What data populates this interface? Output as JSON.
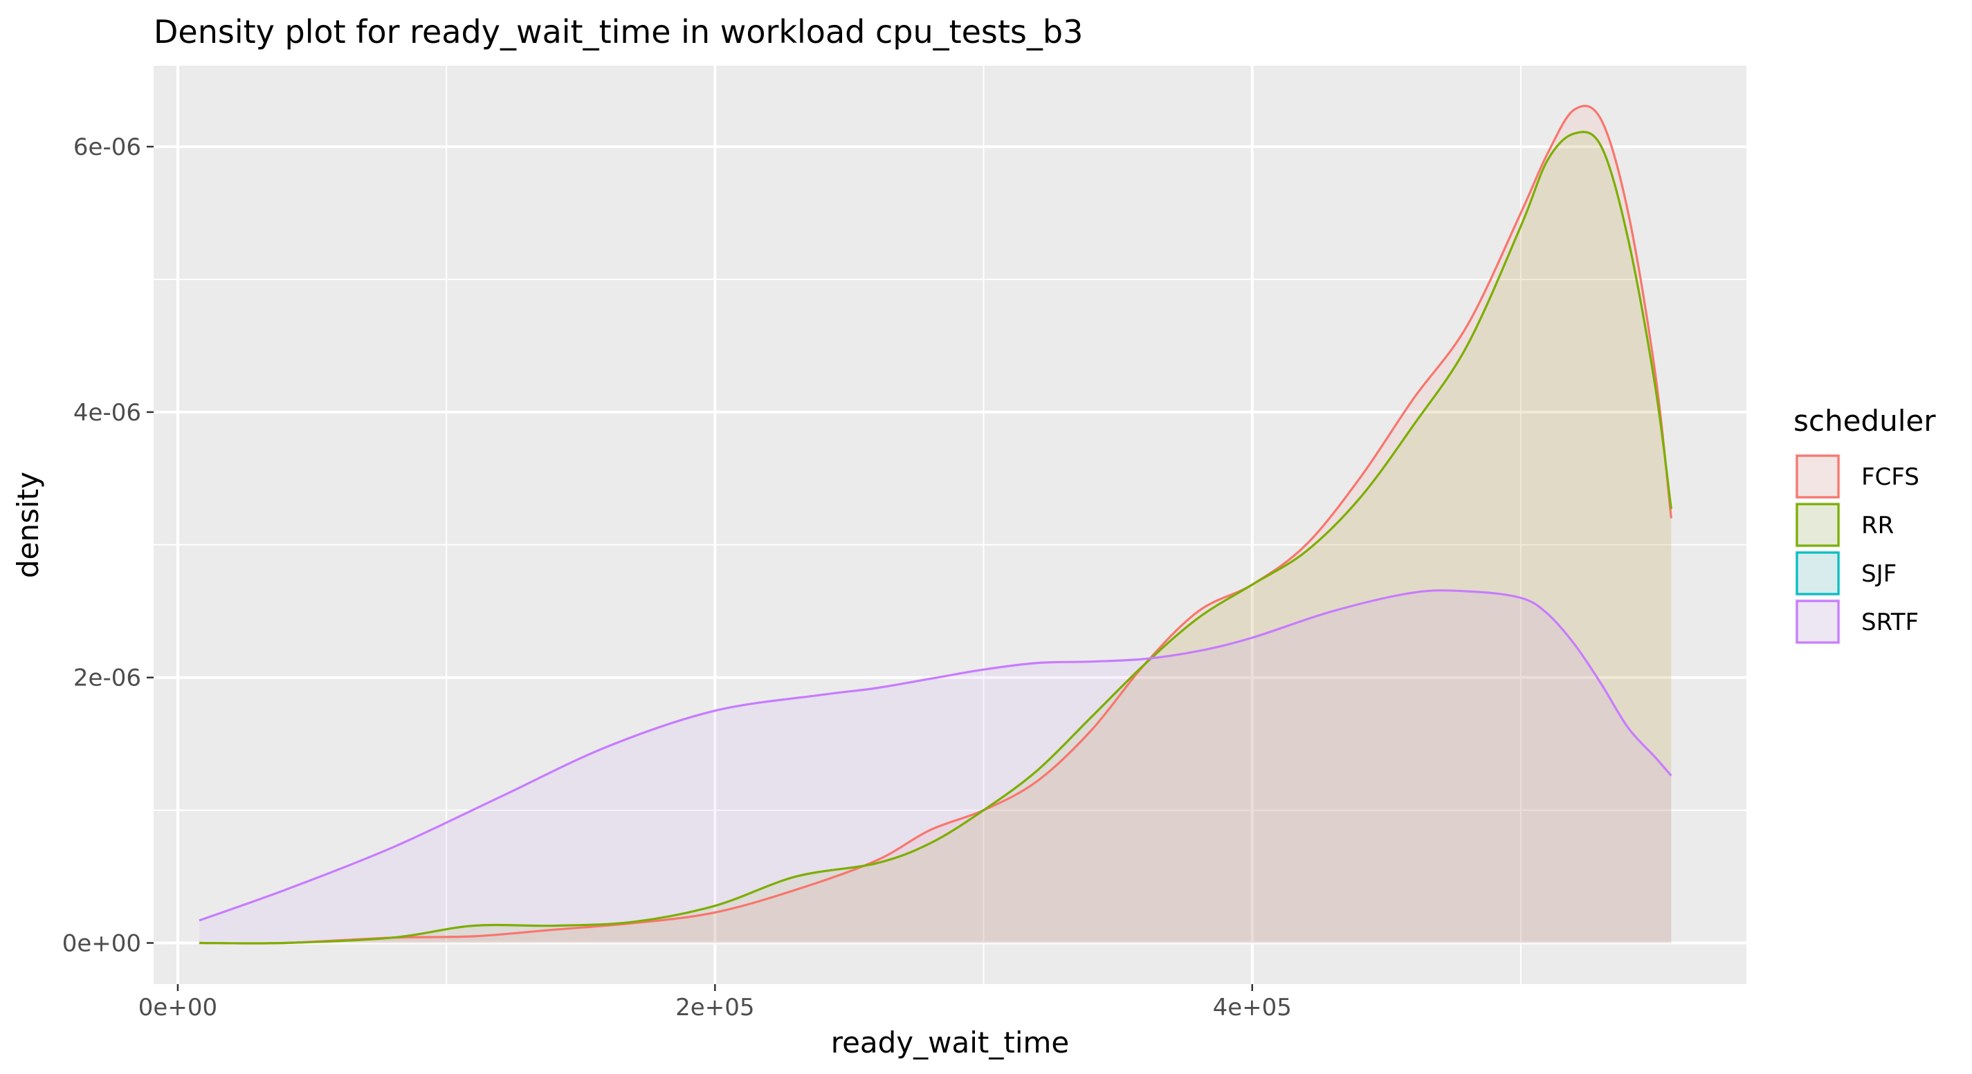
{
  "chart_data": {
    "type": "area",
    "title": "Density plot for ready_wait_time in workload cpu_tests_b3",
    "xlabel": "ready_wait_time",
    "ylabel": "density",
    "xlim": [
      -9000,
      584000
    ],
    "ylim": [
      -3.1e-07,
      6.61e-06
    ],
    "x_ticks": [
      0,
      200000,
      400000
    ],
    "x_tick_labels": [
      "0e+00",
      "2e+05",
      "4e+05"
    ],
    "x_minor": [
      100000,
      300000,
      500000
    ],
    "y_ticks": [
      0,
      2e-06,
      4e-06,
      6e-06
    ],
    "y_tick_labels": [
      "0e+00",
      "2e-06",
      "4e-06",
      "6e-06"
    ],
    "y_minor": [
      1e-06,
      3e-06,
      5e-06
    ],
    "grid": true,
    "legend": {
      "title": "scheduler",
      "position": "right",
      "entries": [
        "FCFS",
        "RR",
        "SJF",
        "SRTF"
      ]
    },
    "colors": {
      "FCFS": "#F8766D",
      "RR": "#7CAE00",
      "SJF": "#00BFC4",
      "SRTF": "#C77CFF",
      "panel": "#EBEBEB",
      "grid": "#FFFFFF"
    },
    "series": [
      {
        "name": "FCFS",
        "x": [
          8000,
          40000,
          80000,
          110000,
          140000,
          170000,
          200000,
          230000,
          260000,
          280000,
          300000,
          320000,
          340000,
          360000,
          380000,
          400000,
          420000,
          440000,
          460000,
          480000,
          500000,
          510000,
          520000,
          530000,
          540000,
          550000,
          556000
        ],
        "y": [
          0,
          0,
          4e-08,
          5e-08,
          1e-07,
          1.5e-07,
          2.3e-07,
          4e-07,
          6.2e-07,
          8.5e-07,
          1e-06,
          1.22e-06,
          1.6e-06,
          2.1e-06,
          2.5e-06,
          2.7e-06,
          3e-06,
          3.5e-06,
          4.1e-06,
          4.65e-06,
          5.5e-06,
          5.95e-06,
          6.28e-06,
          6.2e-06,
          5.5e-06,
          4.3e-06,
          3.2e-06
        ]
      },
      {
        "name": "RR",
        "x": [
          8000,
          40000,
          80000,
          110000,
          140000,
          170000,
          200000,
          230000,
          260000,
          280000,
          300000,
          320000,
          340000,
          360000,
          380000,
          400000,
          420000,
          440000,
          460000,
          480000,
          500000,
          510000,
          520000,
          530000,
          540000,
          550000,
          556000
        ],
        "y": [
          0,
          0,
          4e-08,
          1.3e-07,
          1.3e-07,
          1.6e-07,
          2.8e-07,
          5e-07,
          6e-07,
          7.5e-07,
          1e-06,
          1.3e-06,
          1.7e-06,
          2.1e-06,
          2.45e-06,
          2.7e-06,
          2.95e-06,
          3.35e-06,
          3.9e-06,
          4.5e-06,
          5.4e-06,
          5.9e-06,
          6.1e-06,
          6e-06,
          5.3e-06,
          4.2e-06,
          3.27e-06
        ]
      },
      {
        "name": "SRTF",
        "x": [
          8000,
          40000,
          80000,
          120000,
          160000,
          200000,
          240000,
          260000,
          280000,
          300000,
          320000,
          340000,
          360000,
          380000,
          400000,
          430000,
          460000,
          480000,
          500000,
          510000,
          520000,
          530000,
          540000,
          550000,
          556000
        ],
        "y": [
          1.7e-07,
          4e-07,
          7.2e-07,
          1.1e-06,
          1.48e-06,
          1.75e-06,
          1.87e-06,
          1.92e-06,
          1.99e-06,
          2.06e-06,
          2.11e-06,
          2.12e-06,
          2.14e-06,
          2.2e-06,
          2.3e-06,
          2.5e-06,
          2.64e-06,
          2.65e-06,
          2.6e-06,
          2.48e-06,
          2.25e-06,
          1.95e-06,
          1.62e-06,
          1.4e-06,
          1.26e-06
        ]
      }
    ]
  }
}
